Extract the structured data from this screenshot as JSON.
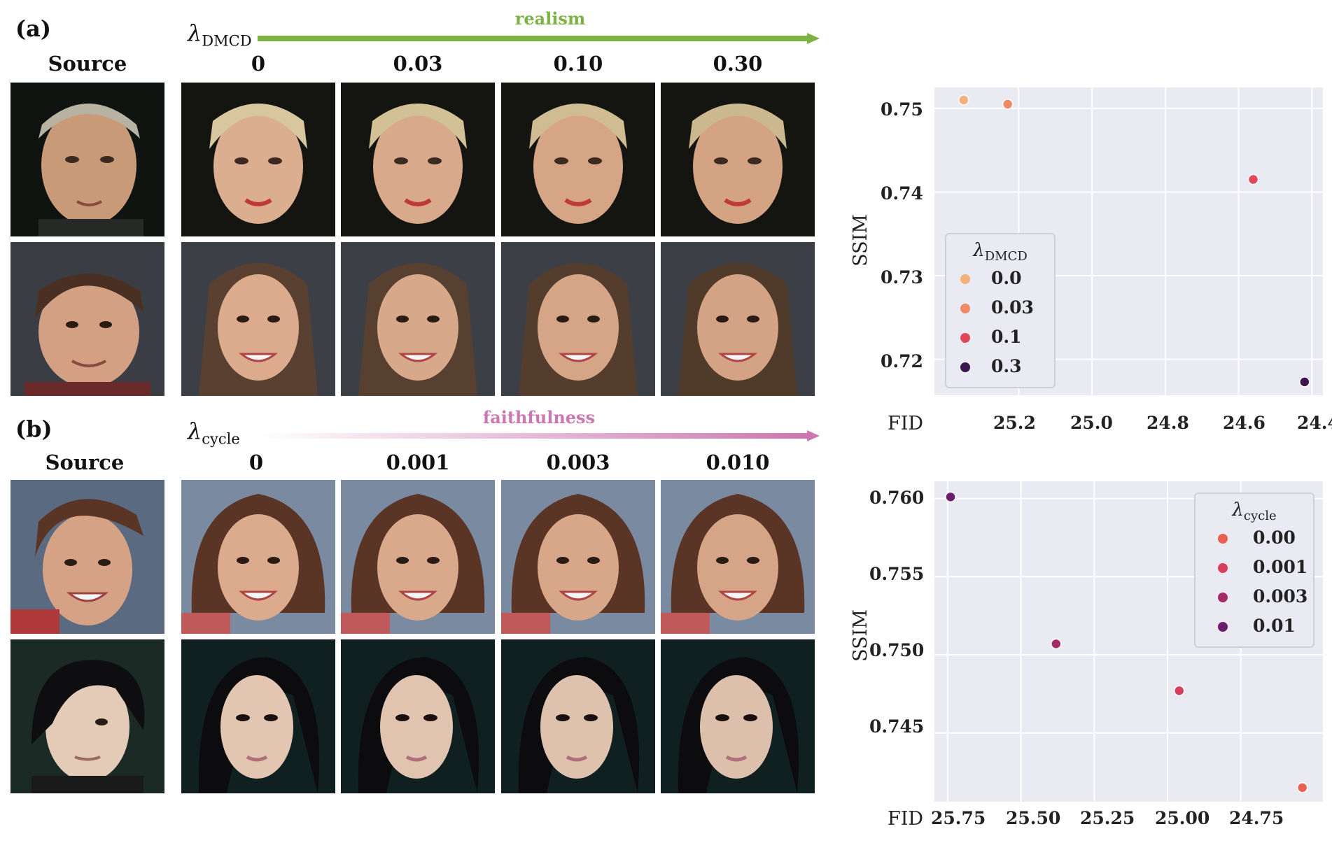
{
  "panel_a": {
    "label": "(a)",
    "lambda_symbol": "λ",
    "lambda_sub": "DMCD",
    "arrow_label": "realism",
    "arrow_color": "#7cb342",
    "source_label": "Source",
    "columns": [
      "0",
      "0.03",
      "0.10",
      "0.30"
    ]
  },
  "panel_b": {
    "label": "(b)",
    "lambda_symbol": "λ",
    "lambda_sub": "cycle",
    "arrow_label": "faithfulness",
    "arrow_color": "#cc77b0",
    "source_label": "Source",
    "columns": [
      "0",
      "0.001",
      "0.003",
      "0.010"
    ]
  },
  "chart_data": [
    {
      "type": "scatter",
      "xlabel": "FID",
      "ylabel": "SSIM",
      "x_inverted": true,
      "xlim": [
        25.43,
        24.37
      ],
      "ylim": [
        0.7157,
        0.7525
      ],
      "x_ticks": [
        "25.2",
        "25.0",
        "24.8",
        "24.6",
        "24.4"
      ],
      "y_ticks": [
        "0.75",
        "0.74",
        "0.73",
        "0.72"
      ],
      "grid": true,
      "legend_title_symbol": "λ",
      "legend_title_sub": "DMCD",
      "legend_position": "center-left",
      "series": [
        {
          "name": "0.0",
          "x": 25.35,
          "y": 0.751,
          "color": "#f3b07a"
        },
        {
          "name": "0.03",
          "x": 25.23,
          "y": 0.7505,
          "color": "#f08a64"
        },
        {
          "name": "0.1",
          "x": 24.56,
          "y": 0.7415,
          "color": "#e0475a"
        },
        {
          "name": "0.3",
          "x": 24.42,
          "y": 0.7173,
          "color": "#3b1450"
        }
      ]
    },
    {
      "type": "scatter",
      "xlabel": "FID",
      "ylabel": "SSIM",
      "x_inverted": true,
      "xlim": [
        25.795,
        24.47
      ],
      "ylim": [
        0.7406,
        0.7611
      ],
      "x_ticks": [
        "25.75",
        "25.50",
        "25.25",
        "25.00",
        "24.75"
      ],
      "y_ticks": [
        "0.760",
        "0.755",
        "0.750",
        "0.745"
      ],
      "grid": true,
      "legend_title_symbol": "λ",
      "legend_title_sub": "cycle",
      "legend_position": "top-right",
      "series": [
        {
          "name": "0.00",
          "x": 24.54,
          "y": 0.7415,
          "color": "#e8604f"
        },
        {
          "name": "0.001",
          "x": 24.96,
          "y": 0.7477,
          "color": "#d6405c"
        },
        {
          "name": "0.003",
          "x": 25.38,
          "y": 0.7507,
          "color": "#a32c68"
        },
        {
          "name": "0.01",
          "x": 25.74,
          "y": 0.7601,
          "color": "#6b1e6e"
        }
      ]
    }
  ]
}
